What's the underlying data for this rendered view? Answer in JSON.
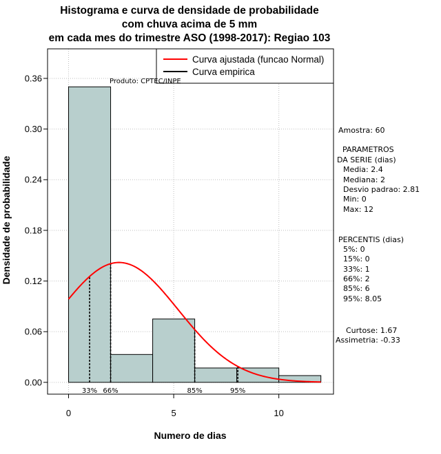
{
  "chart_data": {
    "type": "bar",
    "title": [
      "Histograma e curva de densidade de probabilidade",
      "com chuva acima de 5 mm",
      "em cada mes do trimestre ASO (1998-2017): Regiao 103"
    ],
    "xlabel": "Numero de dias",
    "ylabel": "Densidade de probabilidade",
    "xlim": [
      -1.0,
      12.6
    ],
    "ylim": [
      -0.014,
      0.395
    ],
    "x_ticks": [
      0,
      5,
      10
    ],
    "y_ticks": [
      0.0,
      0.06,
      0.12,
      0.18,
      0.24,
      0.3,
      0.36
    ],
    "y_tick_labels": [
      "0.00",
      "0.06",
      "0.12",
      "0.18",
      "0.24",
      "0.30",
      "0.36"
    ],
    "grid": true,
    "bins": [
      {
        "x0": 0,
        "x1": 2,
        "density": 0.35
      },
      {
        "x0": 2,
        "x1": 4,
        "density": 0.033
      },
      {
        "x0": 4,
        "x1": 6,
        "density": 0.075
      },
      {
        "x0": 6,
        "x1": 8,
        "density": 0.017
      },
      {
        "x0": 8,
        "x1": 10,
        "density": 0.017
      },
      {
        "x0": 10,
        "x1": 12,
        "density": 0.008
      }
    ],
    "fitted_curve": {
      "mean": 2.4,
      "sd": 2.81,
      "x_range": [
        0,
        12
      ]
    },
    "percentile_lines": [
      {
        "label": "33%",
        "x": 1
      },
      {
        "label": "66%",
        "x": 2
      },
      {
        "label": "85%",
        "x": 6
      },
      {
        "label": "95%",
        "x": 8.05
      }
    ],
    "legend": {
      "position": "top-right",
      "entries": [
        {
          "label": "Curva ajustada (funcao Normal)",
          "color": "#ff0000"
        },
        {
          "label": "Curva empirica",
          "color": "#000000"
        }
      ]
    },
    "colors": {
      "bar_fill": "#b8cfcd",
      "curve": "#ff0000",
      "grid": "#bebebe"
    }
  },
  "annotations": {
    "produto": "Produto: CPTEC/INPE",
    "amostra": "Amostra: 60",
    "parametros_title_1": "PARAMETROS",
    "parametros_title_2": "DA SERIE (dias)",
    "media": "Media: 2.4",
    "mediana": "Mediana: 2",
    "desvio": "Desvio padrao: 2.81",
    "min": "Min: 0",
    "max": "Max: 12",
    "percentis_title": "PERCENTIS (dias)",
    "p5": "5%: 0",
    "p15": "15%: 0",
    "p33": "33%: 1",
    "p66": "66%: 2",
    "p85": "85%: 6",
    "p95": "95%: 8.05",
    "curtose": "Curtose: 1.67",
    "assimetria": "Assimetria: -0.33"
  }
}
